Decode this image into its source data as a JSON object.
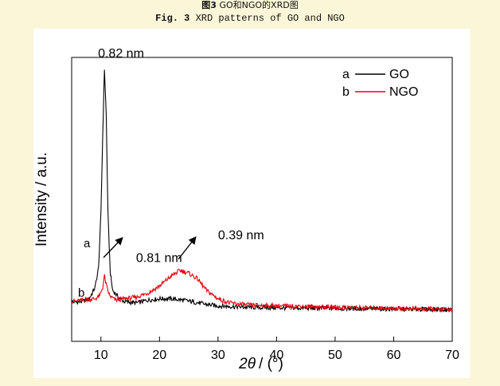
{
  "caption": {
    "cn_label": "图3",
    "cn_text": "GO和NGO的XRD图",
    "en_label": "Fig. 3",
    "en_text": "XRD patterns of GO and NGO"
  },
  "chart_data": {
    "type": "line",
    "title": "",
    "xlabel_math": "2θ",
    "xlabel_unit": "/ (°)",
    "ylabel": "Intensity / a.u.",
    "xlim": [
      5,
      70
    ],
    "xticks": [
      10,
      20,
      30,
      40,
      50,
      60,
      70
    ],
    "xtick_labels": [
      "10",
      "20",
      "30",
      "40",
      "50",
      "60",
      "70"
    ],
    "ylim": [
      0,
      100
    ],
    "y_ticks_shown": false,
    "legend": {
      "placement": "top-right",
      "entries": [
        {
          "letter": "a",
          "name": "GO",
          "color": "#000000"
        },
        {
          "letter": "b",
          "name": "NGO",
          "color": "#e8000b"
        }
      ]
    },
    "series": [
      {
        "name": "GO",
        "curve_label": "a",
        "color": "#000000",
        "points": [
          [
            5,
            14
          ],
          [
            6,
            13.8
          ],
          [
            7,
            14.2
          ],
          [
            8,
            15
          ],
          [
            9,
            19
          ],
          [
            9.6,
            26
          ],
          [
            10,
            45
          ],
          [
            10.3,
            72
          ],
          [
            10.6,
            96
          ],
          [
            10.9,
            80
          ],
          [
            11.2,
            45
          ],
          [
            11.6,
            24
          ],
          [
            12,
            18
          ],
          [
            13,
            15.5
          ],
          [
            14,
            14
          ],
          [
            16,
            13.5
          ],
          [
            18,
            14.5
          ],
          [
            20,
            15
          ],
          [
            22,
            15
          ],
          [
            24,
            14.5
          ],
          [
            26,
            13.8
          ],
          [
            28,
            13
          ],
          [
            30,
            12.5
          ],
          [
            35,
            12
          ],
          [
            40,
            11.8
          ],
          [
            50,
            11.6
          ],
          [
            60,
            11.4
          ],
          [
            70,
            11.2
          ]
        ]
      },
      {
        "name": "NGO",
        "curve_label": "b",
        "color": "#e8000b",
        "points": [
          [
            5,
            14
          ],
          [
            7,
            14.4
          ],
          [
            8,
            14.8
          ],
          [
            9,
            15
          ],
          [
            9.8,
            16
          ],
          [
            10.3,
            19
          ],
          [
            10.6,
            23
          ],
          [
            11,
            19
          ],
          [
            11.5,
            16
          ],
          [
            12.5,
            14.5
          ],
          [
            14,
            15
          ],
          [
            16,
            15.5
          ],
          [
            18,
            17
          ],
          [
            20,
            19.5
          ],
          [
            22,
            23
          ],
          [
            23.5,
            25
          ],
          [
            25,
            24
          ],
          [
            26.5,
            22
          ],
          [
            28,
            18
          ],
          [
            30,
            15
          ],
          [
            32,
            13.5
          ],
          [
            35,
            12.8
          ],
          [
            40,
            12.5
          ],
          [
            45,
            12.3
          ],
          [
            50,
            12
          ],
          [
            55,
            11.8
          ],
          [
            60,
            11.6
          ],
          [
            65,
            11.4
          ],
          [
            70,
            11.2
          ]
        ]
      }
    ],
    "annotations": [
      {
        "text": "0.82 nm",
        "x": 9.5,
        "y": 100
      },
      {
        "text": "0.81 nm",
        "x": 16,
        "y": 28
      },
      {
        "text": "0.39 nm",
        "x": 30,
        "y": 36
      }
    ]
  }
}
